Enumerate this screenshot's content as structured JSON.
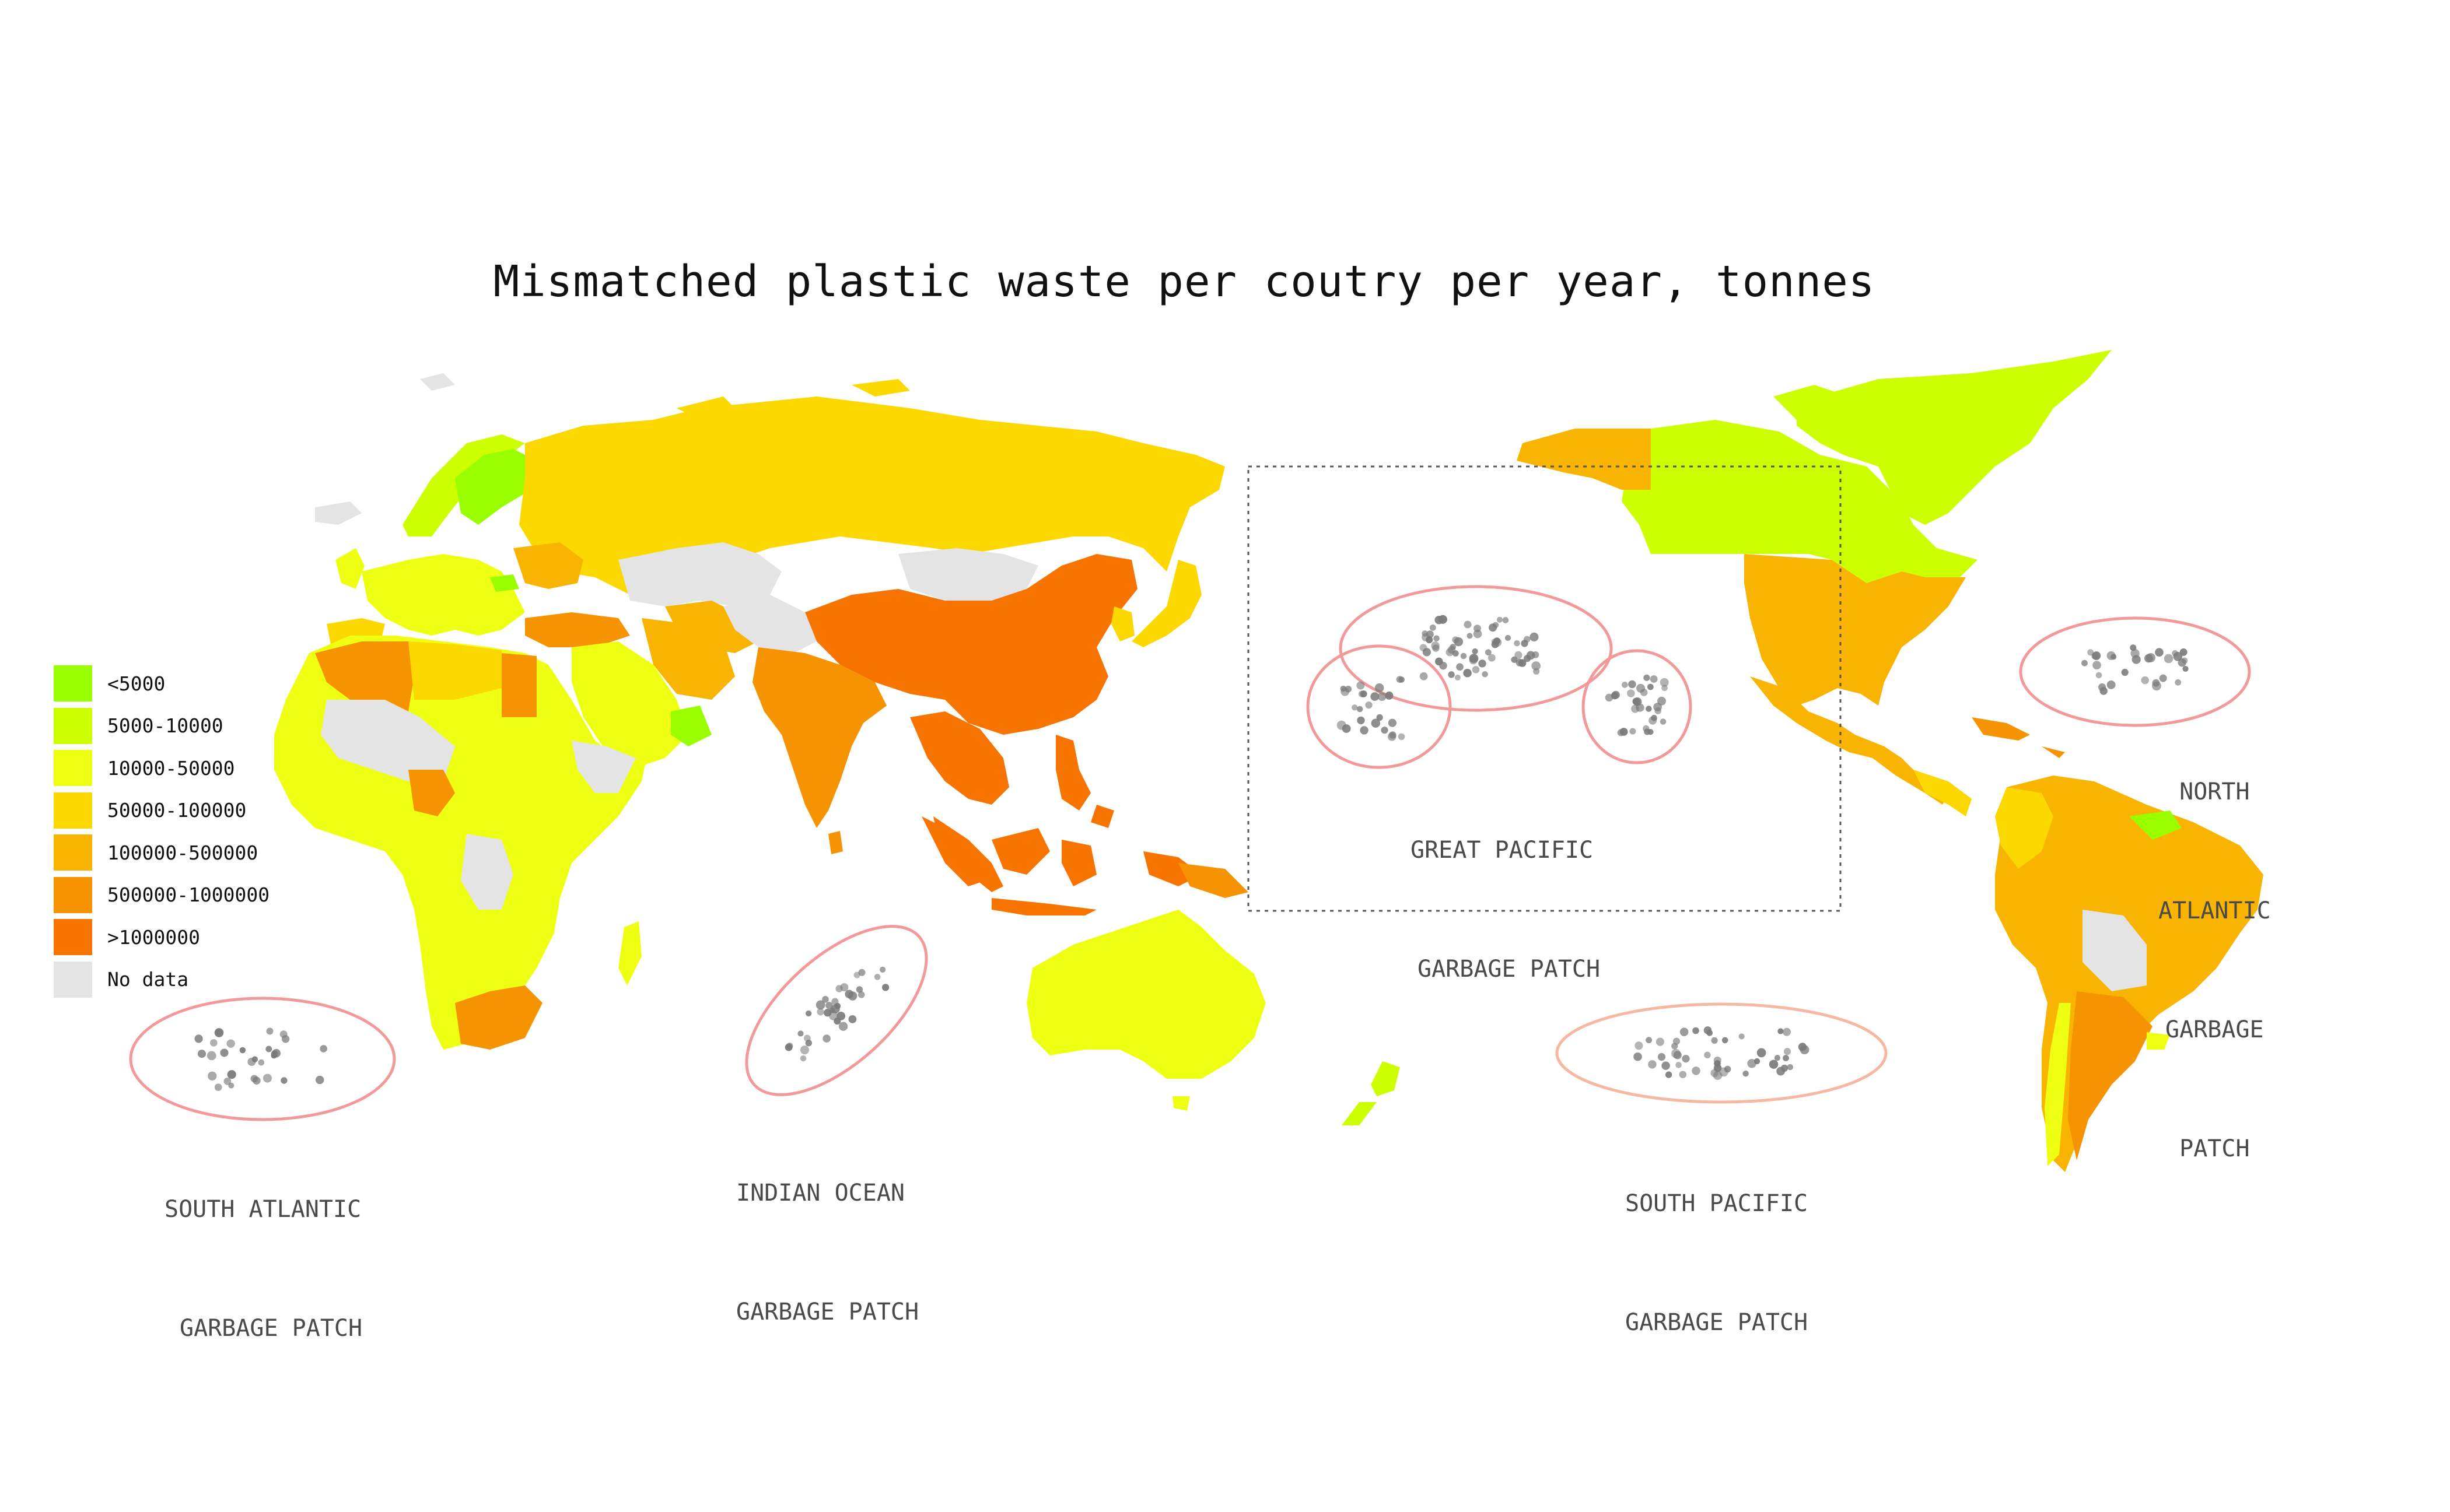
{
  "title": "Mismatched plastic waste per coutry per year, tonnes",
  "legend": {
    "items": [
      {
        "label": "<5000",
        "color": "#99ff00"
      },
      {
        "label": "5000-10000",
        "color": "#ccff00"
      },
      {
        "label": "10000-50000",
        "color": "#eeff11"
      },
      {
        "label": "50000-100000",
        "color": "#fbd800"
      },
      {
        "label": "100000-500000",
        "color": "#f8b400"
      },
      {
        "label": "500000-1000000",
        "color": "#f59300"
      },
      {
        "label": ">1000000",
        "color": "#f87400"
      },
      {
        "label": "No data",
        "color": "#e4e4e4"
      }
    ]
  },
  "patches": {
    "south_atlantic": {
      "line1": "SOUTH ATLANTIC",
      "line2": "GARBAGE PATCH"
    },
    "indian_ocean": {
      "line1": "INDIAN OCEAN",
      "line2": "GARBAGE PATCH"
    },
    "great_pacific": {
      "line1": "GREAT PACIFIC",
      "line2": "GARBAGE PATCH"
    },
    "south_pacific": {
      "line1": "SOUTH PACIFIC",
      "line2": "GARBAGE PATCH"
    },
    "north_atlantic": {
      "line1": "NORTH",
      "line2": "ATLANTIC",
      "line3": "GARBAGE",
      "line4": "PATCH"
    }
  },
  "colors": {
    "patch_circle": "#f29a9a",
    "south_pacific_circle": "#f6b8a0",
    "dots": "#7a7a7a",
    "dashed_box": "#555555"
  }
}
